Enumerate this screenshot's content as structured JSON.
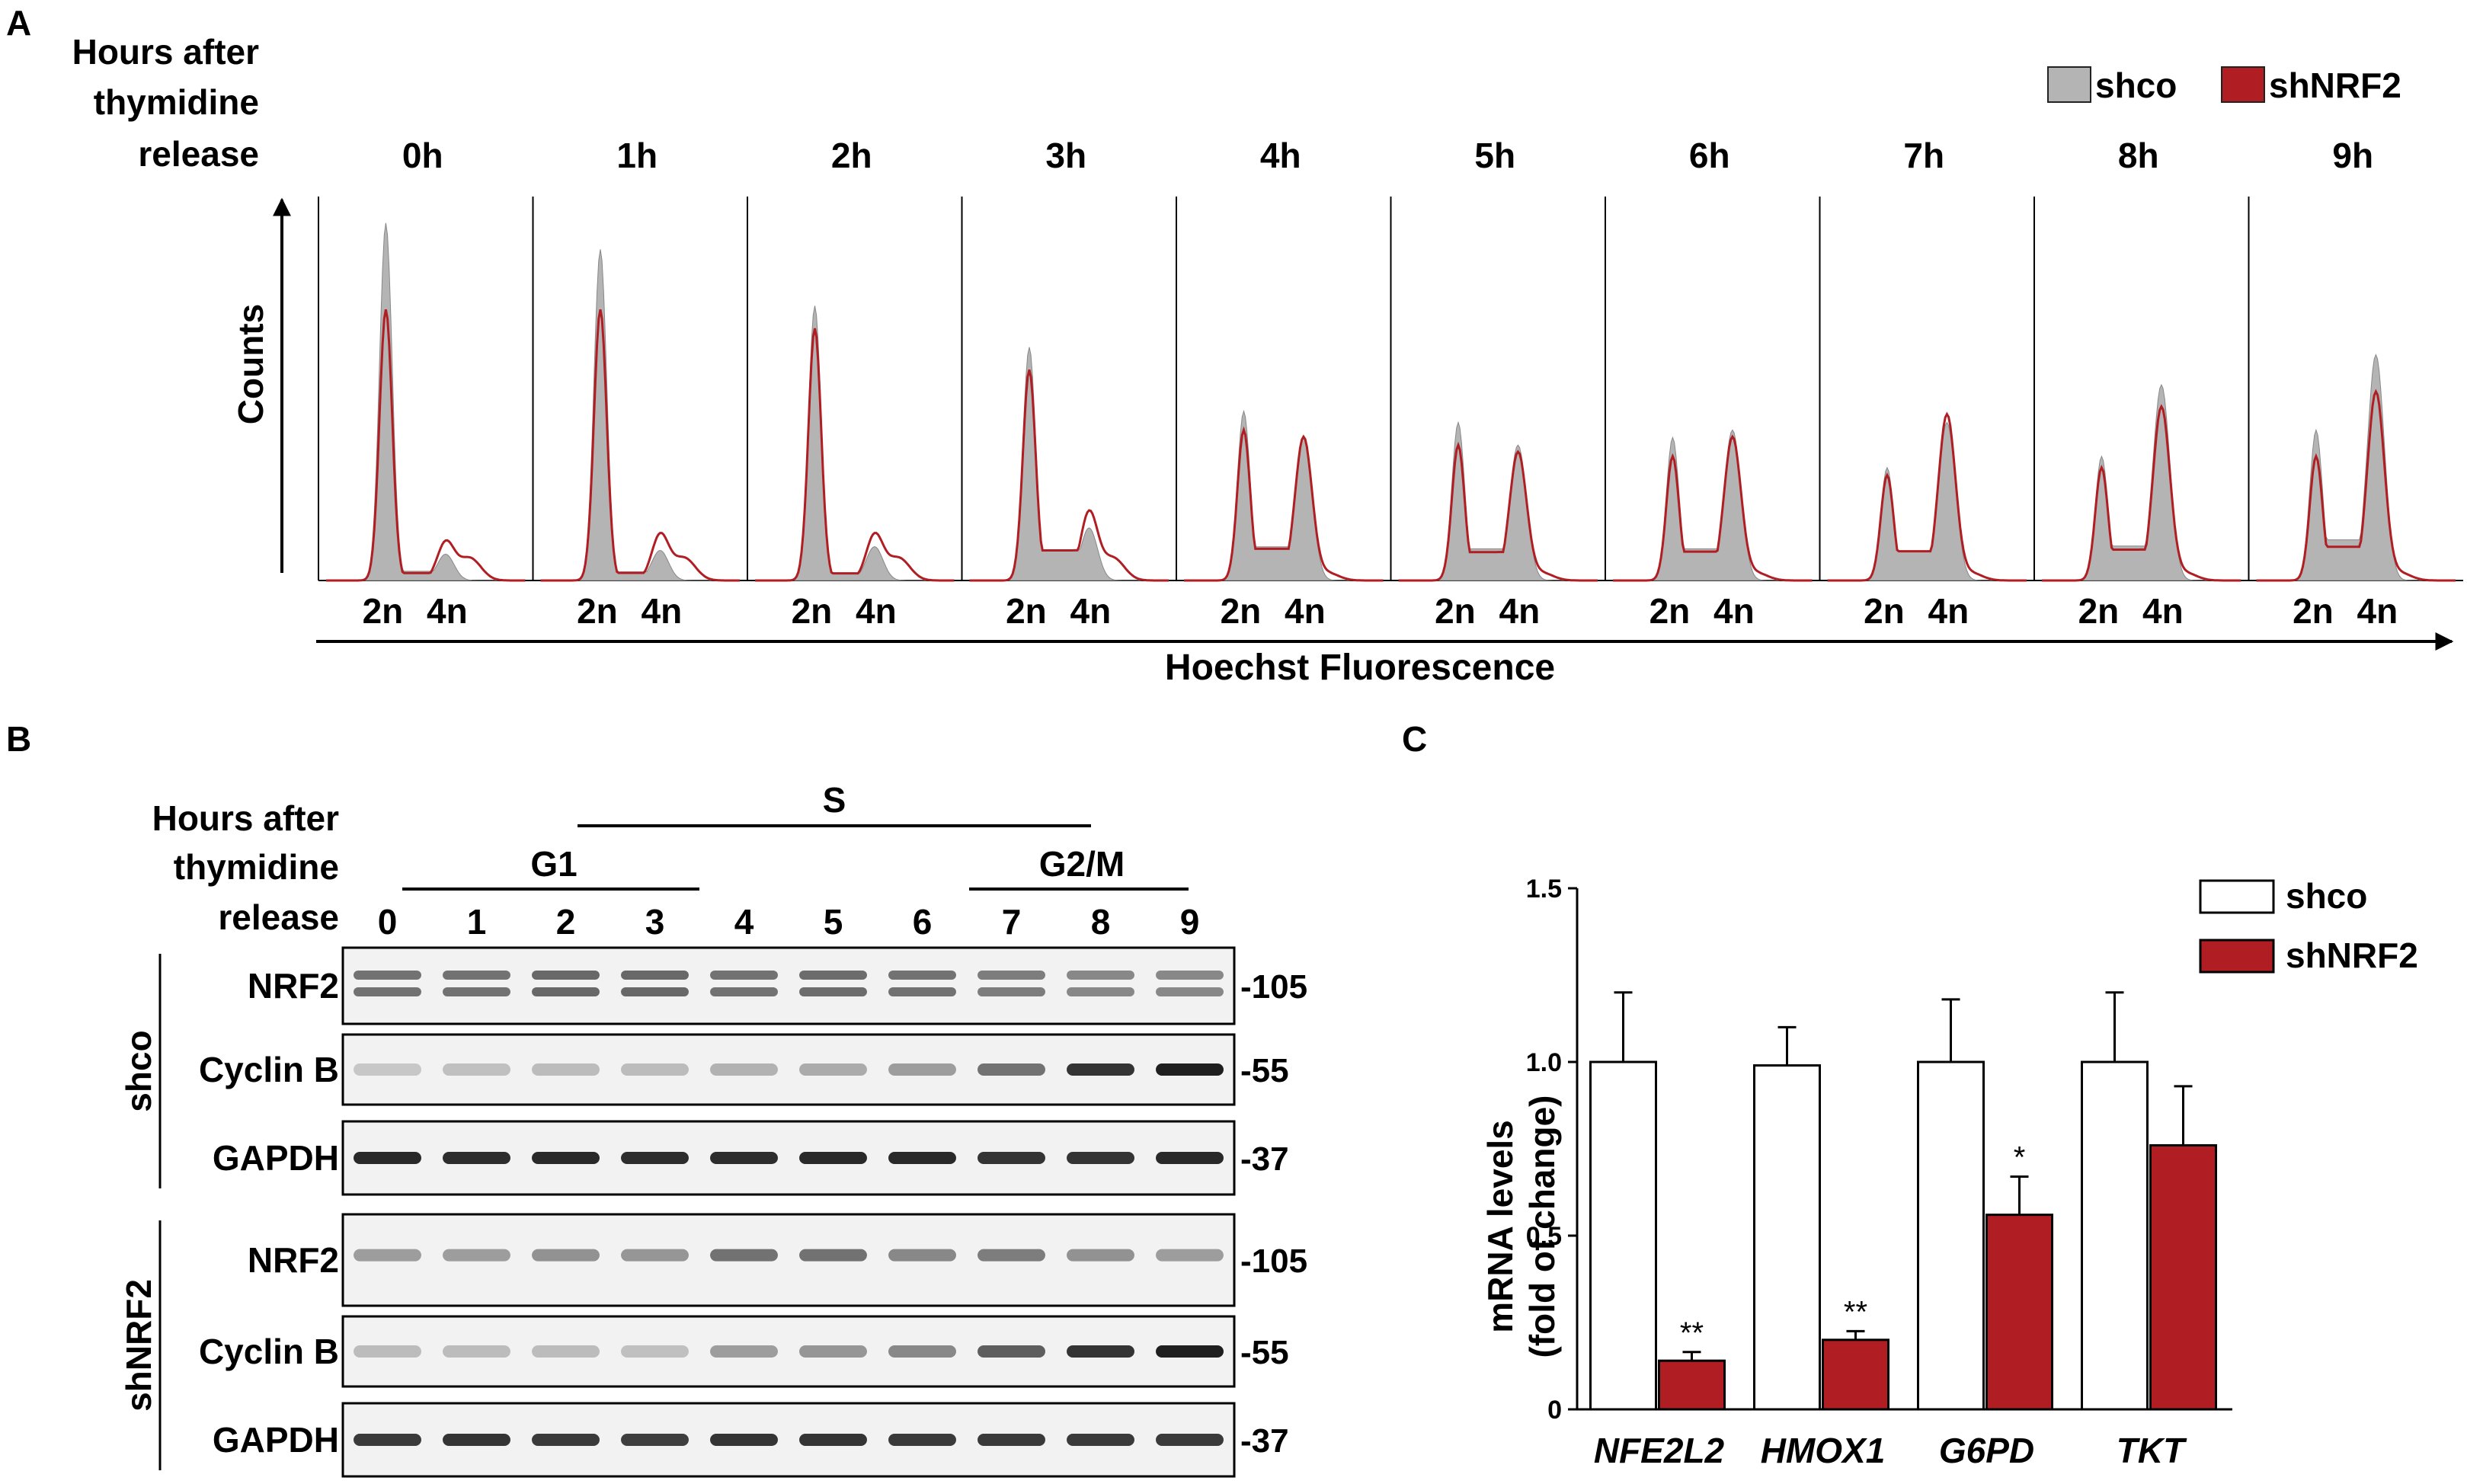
{
  "panel_a": {
    "letter": "A",
    "row_label": [
      "Hours after",
      "thymidine",
      "release"
    ],
    "times": [
      "0h",
      "1h",
      "2h",
      "3h",
      "4h",
      "5h",
      "6h",
      "7h",
      "8h",
      "9h"
    ],
    "y_label": "Counts",
    "x_label": "Hoechst Fluorescence",
    "tick_2n": "2n",
    "tick_4n": "4n",
    "legend": [
      {
        "name": "shco",
        "color": "#b4b4b4"
      },
      {
        "name": "shNRF2",
        "color": "#b01e23"
      }
    ]
  },
  "panel_b": {
    "letter": "B",
    "row_label": [
      "Hours after",
      "thymidine",
      "release"
    ],
    "phases": {
      "s": "S",
      "g1": "G1",
      "g2m": "G2/M"
    },
    "lanes": [
      "0",
      "1",
      "2",
      "3",
      "4",
      "5",
      "6",
      "7",
      "8",
      "9"
    ],
    "groups": [
      {
        "name": "shco",
        "blots": [
          {
            "label": "NRF2",
            "marker": "-105"
          },
          {
            "label": "Cyclin B",
            "marker": "-55"
          },
          {
            "label": "GAPDH",
            "marker": "-37"
          }
        ]
      },
      {
        "name": "shNRF2",
        "blots": [
          {
            "label": "NRF2",
            "marker": "-105"
          },
          {
            "label": "Cyclin B",
            "marker": "-55"
          },
          {
            "label": "GAPDH",
            "marker": "-37"
          }
        ]
      }
    ]
  },
  "chart_data": {
    "type": "bar",
    "panel_letter": "C",
    "categories": [
      "NFE2L2",
      "HMOX1",
      "G6PD",
      "TKT"
    ],
    "ylabel": [
      "mRNA levels",
      "(fold of change)"
    ],
    "ylim": [
      0,
      1.5
    ],
    "yticks": [
      "0",
      "0.5",
      "1.0",
      "1.5"
    ],
    "legend_position": "top-right",
    "series": [
      {
        "name": "shco",
        "color": "#ffffff",
        "values": [
          1.0,
          0.99,
          1.0,
          1.0
        ],
        "errors": [
          0.2,
          0.11,
          0.18,
          0.2
        ],
        "significance": [
          "",
          "",
          "",
          ""
        ]
      },
      {
        "name": "shNRF2",
        "color": "#b01e23",
        "values": [
          0.14,
          0.2,
          0.56,
          0.76
        ],
        "errors": [
          0.025,
          0.025,
          0.11,
          0.17
        ],
        "significance": [
          "**",
          "**",
          "*",
          ""
        ]
      }
    ]
  }
}
